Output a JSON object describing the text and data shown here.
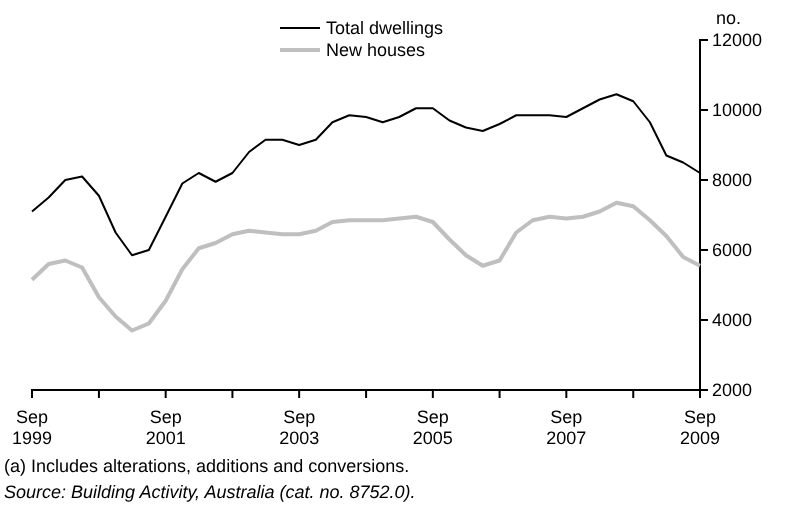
{
  "chart_data": {
    "type": "line",
    "ylabel": "no.",
    "x": [
      "1999-09",
      "1999-12",
      "2000-03",
      "2000-06",
      "2000-09",
      "2000-12",
      "2001-03",
      "2001-06",
      "2001-09",
      "2001-12",
      "2002-03",
      "2002-06",
      "2002-09",
      "2002-12",
      "2003-03",
      "2003-06",
      "2003-09",
      "2003-12",
      "2004-03",
      "2004-06",
      "2004-09",
      "2004-12",
      "2005-03",
      "2005-06",
      "2005-09",
      "2005-12",
      "2006-03",
      "2006-06",
      "2006-09",
      "2006-12",
      "2007-03",
      "2007-06",
      "2007-09",
      "2007-12",
      "2008-03",
      "2008-06",
      "2008-09",
      "2008-12",
      "2009-03",
      "2009-06",
      "2009-09"
    ],
    "series": [
      {
        "name": "Total dwellings",
        "color": "#000000",
        "values": [
          7100,
          7500,
          8000,
          8100,
          7550,
          6500,
          5850,
          6000,
          6950,
          7900,
          8200,
          7950,
          8200,
          8800,
          9150,
          9150,
          9000,
          9150,
          9650,
          9850,
          9800,
          9650,
          9800,
          10050,
          10050,
          9700,
          9500,
          9400,
          9600,
          9850,
          9850,
          9850,
          9800,
          10050,
          10300,
          10450,
          10250,
          9650,
          8700,
          8500,
          8200
        ]
      },
      {
        "name": "New houses",
        "color": "#bfbfbf",
        "values": [
          5150,
          5600,
          5700,
          5500,
          4650,
          4100,
          3700,
          3900,
          4550,
          5450,
          6050,
          6200,
          6450,
          6550,
          6500,
          6450,
          6450,
          6550,
          6800,
          6850,
          6850,
          6850,
          6900,
          6950,
          6800,
          6300,
          5850,
          5550,
          5700,
          6500,
          6850,
          6950,
          6900,
          6950,
          7100,
          7350,
          7250,
          6850,
          6400,
          5800,
          5550
        ]
      }
    ],
    "xlim": [
      "1999-09",
      "2009-09"
    ],
    "xticks": [
      {
        "value": "1999-09",
        "label": "Sep 1999"
      },
      {
        "value": "2000-09",
        "label": null
      },
      {
        "value": "2001-09",
        "label": "Sep 2001"
      },
      {
        "value": "2002-09",
        "label": null
      },
      {
        "value": "2003-09",
        "label": "Sep 2003"
      },
      {
        "value": "2004-09",
        "label": null
      },
      {
        "value": "2005-09",
        "label": "Sep 2005"
      },
      {
        "value": "2006-09",
        "label": null
      },
      {
        "value": "2007-09",
        "label": "Sep 2007"
      },
      {
        "value": "2008-09",
        "label": null
      },
      {
        "value": "2009-09",
        "label": "Sep 2009"
      }
    ],
    "ylim": [
      2000,
      12000
    ],
    "yticks": [
      2000,
      4000,
      6000,
      8000,
      10000,
      12000
    ],
    "grid": false,
    "legend": "top",
    "marker": "none",
    "line_style": "solid",
    "annotations": [
      "(a) Includes alterations, additions and conversions.",
      "Source: Building Activity, Australia (cat. no. 8752.0)."
    ]
  }
}
